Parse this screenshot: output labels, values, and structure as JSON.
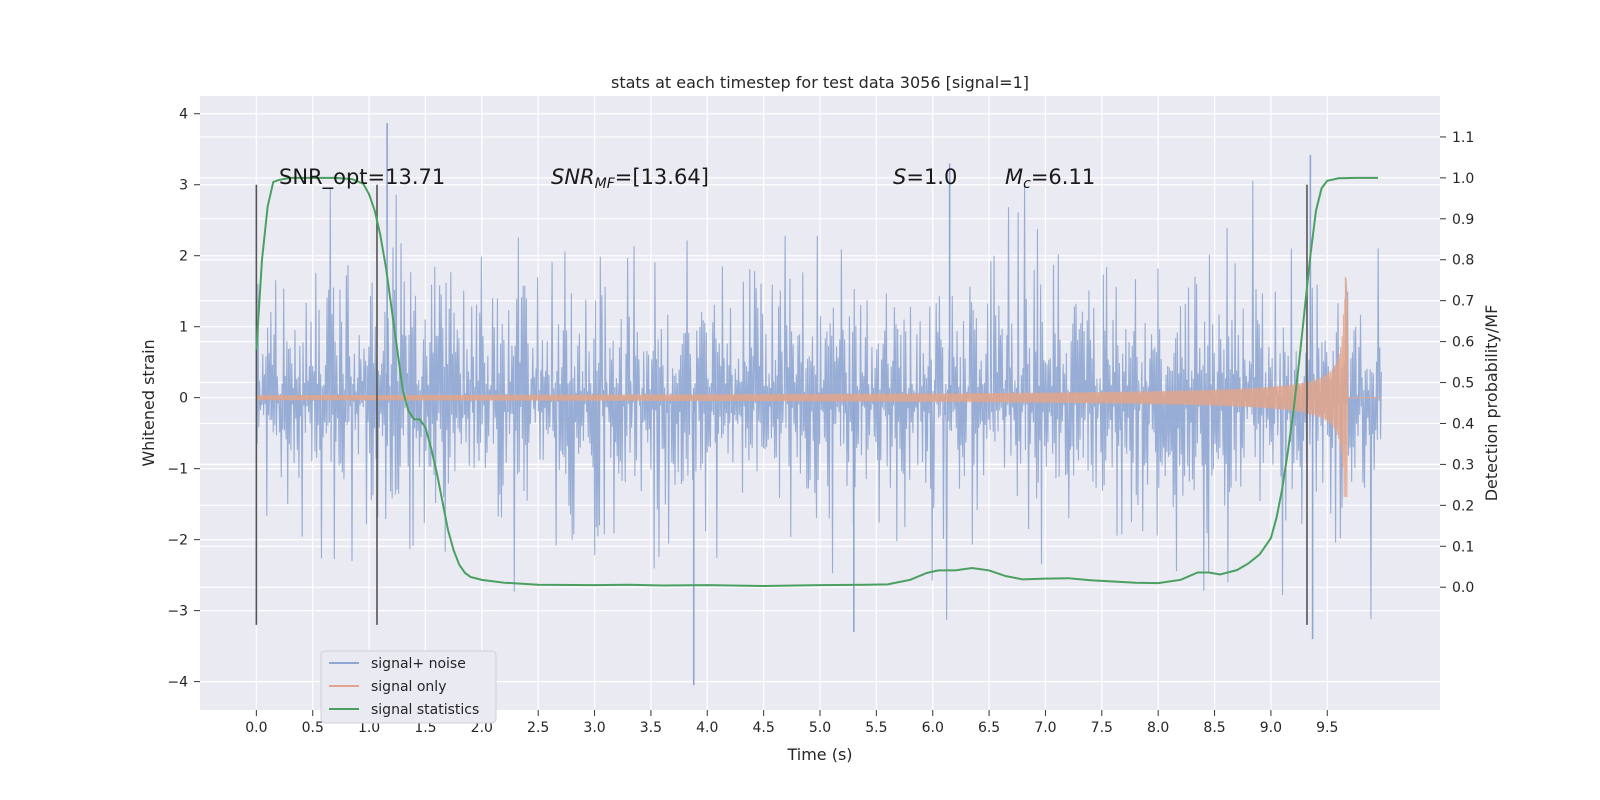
{
  "chart_data": {
    "type": "line",
    "title": "stats at each timestep for test data 3056 [signal=1]",
    "xlabel": "Time (s)",
    "ylabel": "Whitened strain",
    "y2label": "Detection probability/MF",
    "xlim": [
      -0.5,
      10.5
    ],
    "ylim": [
      -4.4,
      4.25
    ],
    "y2lim": [
      -0.3,
      1.2
    ],
    "xticks": [
      "0.0",
      "0.5",
      "1.0",
      "1.5",
      "2.0",
      "2.5",
      "3.0",
      "3.5",
      "4.0",
      "4.5",
      "5.0",
      "5.5",
      "6.0",
      "6.5",
      "7.0",
      "7.5",
      "8.0",
      "8.5",
      "9.0",
      "9.5"
    ],
    "yticks": [
      "−4",
      "−3",
      "−2",
      "−1",
      "0",
      "1",
      "2",
      "3",
      "4"
    ],
    "y2ticks": [
      "0.0",
      "0.1",
      "0.2",
      "0.3",
      "0.4",
      "0.5",
      "0.6",
      "0.7",
      "0.8",
      "0.9",
      "1.0",
      "1.1"
    ],
    "grid": true,
    "legend_position": "lower-left",
    "colors": {
      "background": "#eaeaf2",
      "noise": "#8fa6d2",
      "signal": "#e3a58a",
      "stats": "#4aa060",
      "vline": "#555555"
    },
    "annotations": {
      "snr_opt": "SNR_opt=13.71",
      "snr_mf_main": "SNR",
      "snr_mf_sub": "MF",
      "snr_mf_value": "=[13.64]",
      "s_main": "S",
      "s_value": "=1.0",
      "mc_main": "M",
      "mc_sub": "c",
      "mc_value": "=6.11"
    },
    "vertical_lines": {
      "x": [
        0.0,
        1.07,
        9.32
      ],
      "y_range": [
        -3.2,
        3.0
      ]
    },
    "series": [
      {
        "name": "signal+ noise",
        "type": "noise",
        "x_range": [
          0.0,
          9.98
        ],
        "typical_amplitude": 1.6,
        "extremes": [
          {
            "x": 1.16,
            "y": 3.87
          },
          {
            "x": 3.88,
            "y": -4.05
          },
          {
            "x": 9.37,
            "y": -3.4
          },
          {
            "x": 9.35,
            "y": 3.42
          },
          {
            "x": 5.3,
            "y": -3.3
          },
          {
            "x": 6.15,
            "y": 3.3
          }
        ]
      },
      {
        "name": "signal only",
        "type": "chirp",
        "x_range": [
          0.0,
          9.68
        ],
        "peak": {
          "x": 9.66,
          "y_max": 1.7,
          "y_min": -1.05
        }
      },
      {
        "name": "signal statistics",
        "type": "line",
        "axis": "right",
        "points": [
          [
            0.0,
            0.58
          ],
          [
            0.05,
            0.8
          ],
          [
            0.1,
            0.93
          ],
          [
            0.15,
            0.99
          ],
          [
            0.2,
            0.995
          ],
          [
            0.3,
            1.0
          ],
          [
            0.5,
            1.0
          ],
          [
            0.7,
            1.0
          ],
          [
            0.85,
            0.997
          ],
          [
            0.95,
            0.985
          ],
          [
            1.0,
            0.96
          ],
          [
            1.05,
            0.92
          ],
          [
            1.1,
            0.86
          ],
          [
            1.15,
            0.78
          ],
          [
            1.2,
            0.68
          ],
          [
            1.25,
            0.58
          ],
          [
            1.3,
            0.48
          ],
          [
            1.35,
            0.43
          ],
          [
            1.4,
            0.41
          ],
          [
            1.45,
            0.41
          ],
          [
            1.5,
            0.39
          ],
          [
            1.55,
            0.34
          ],
          [
            1.6,
            0.28
          ],
          [
            1.65,
            0.21
          ],
          [
            1.7,
            0.14
          ],
          [
            1.75,
            0.09
          ],
          [
            1.8,
            0.055
          ],
          [
            1.85,
            0.035
          ],
          [
            1.9,
            0.025
          ],
          [
            2.0,
            0.018
          ],
          [
            2.2,
            0.011
          ],
          [
            2.5,
            0.006
          ],
          [
            3.0,
            0.005
          ],
          [
            3.3,
            0.006
          ],
          [
            3.6,
            0.004
          ],
          [
            4.0,
            0.005
          ],
          [
            4.5,
            0.003
          ],
          [
            5.0,
            0.005
          ],
          [
            5.4,
            0.006
          ],
          [
            5.6,
            0.007
          ],
          [
            5.8,
            0.018
          ],
          [
            5.95,
            0.035
          ],
          [
            6.05,
            0.041
          ],
          [
            6.2,
            0.041
          ],
          [
            6.35,
            0.047
          ],
          [
            6.5,
            0.041
          ],
          [
            6.65,
            0.027
          ],
          [
            6.8,
            0.019
          ],
          [
            7.0,
            0.021
          ],
          [
            7.2,
            0.022
          ],
          [
            7.4,
            0.017
          ],
          [
            7.6,
            0.014
          ],
          [
            7.8,
            0.011
          ],
          [
            8.0,
            0.01
          ],
          [
            8.2,
            0.018
          ],
          [
            8.35,
            0.036
          ],
          [
            8.45,
            0.036
          ],
          [
            8.55,
            0.031
          ],
          [
            8.7,
            0.042
          ],
          [
            8.8,
            0.058
          ],
          [
            8.9,
            0.08
          ],
          [
            9.0,
            0.12
          ],
          [
            9.05,
            0.17
          ],
          [
            9.1,
            0.24
          ],
          [
            9.15,
            0.33
          ],
          [
            9.2,
            0.43
          ],
          [
            9.25,
            0.55
          ],
          [
            9.3,
            0.68
          ],
          [
            9.35,
            0.81
          ],
          [
            9.4,
            0.92
          ],
          [
            9.45,
            0.975
          ],
          [
            9.5,
            0.993
          ],
          [
            9.6,
            0.999
          ],
          [
            9.75,
            1.0
          ],
          [
            9.95,
            1.0
          ]
        ]
      }
    ]
  }
}
